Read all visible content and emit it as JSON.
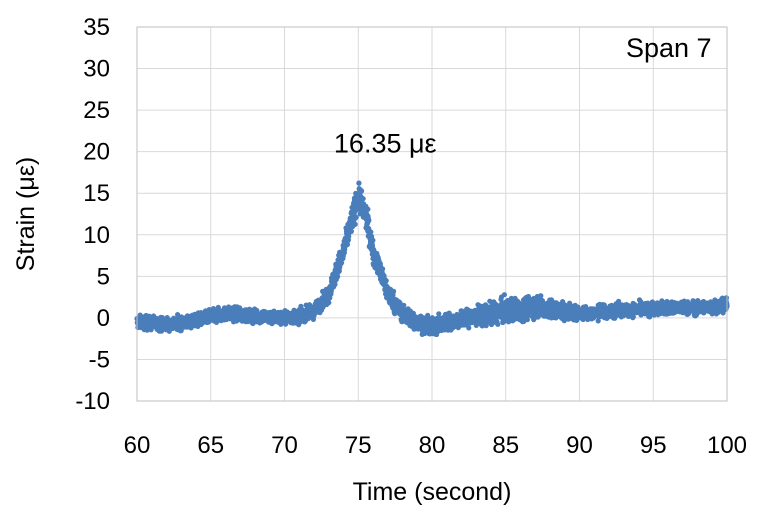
{
  "chart_data": {
    "type": "scatter",
    "title": "",
    "xlabel": "Time (second)",
    "ylabel": "Strain (με)",
    "xlim": [
      60,
      100
    ],
    "ylim": [
      -10,
      35
    ],
    "xticks": [
      60,
      65,
      70,
      75,
      80,
      85,
      90,
      95,
      100
    ],
    "xtick_labels": [
      "60",
      "65",
      "70",
      "75",
      "80",
      "85",
      "90",
      "95",
      "100"
    ],
    "yticks": [
      -10,
      -5,
      0,
      5,
      10,
      15,
      20,
      25,
      30,
      35
    ],
    "ytick_labels": [
      "-10",
      "-5",
      "0",
      "5",
      "10",
      "15",
      "20",
      "25",
      "30",
      "35"
    ],
    "grid": true,
    "color": "#4a7ebb",
    "annotations": [
      {
        "text": "Span 7",
        "x": 97,
        "y": 32.5
      },
      {
        "text": "16.35 με",
        "x": 75,
        "y": 21
      }
    ],
    "peak": {
      "x": 75.1,
      "y": 16.35
    },
    "series": [
      {
        "values_note": "",
        "trend": {
          "x": [
            60,
            62,
            64,
            66,
            68,
            70,
            71,
            72,
            73,
            74,
            74.5,
            75,
            75.5,
            76,
            77,
            78,
            79,
            80,
            81,
            82,
            84,
            86,
            87,
            88,
            90,
            92,
            94,
            96,
            98,
            100
          ],
          "y": [
            -0.5,
            -0.8,
            -0.3,
            0.5,
            0.2,
            0.0,
            0.2,
            0.8,
            3.0,
            8.0,
            11.5,
            14.5,
            12.5,
            8.0,
            3.0,
            0.5,
            -0.5,
            -1.2,
            -0.5,
            -0.2,
            0.5,
            1.0,
            1.5,
            1.0,
            0.5,
            0.8,
            1.0,
            1.2,
            1.2,
            1.5
          ]
        },
        "spread": {
          "x": [
            60,
            72,
            74,
            75,
            76,
            78,
            82,
            85,
            88,
            90,
            100
          ],
          "y": [
            1.2,
            1.2,
            2.0,
            2.5,
            2.0,
            1.5,
            1.5,
            2.2,
            1.8,
            1.2,
            1.2
          ]
        }
      }
    ]
  }
}
